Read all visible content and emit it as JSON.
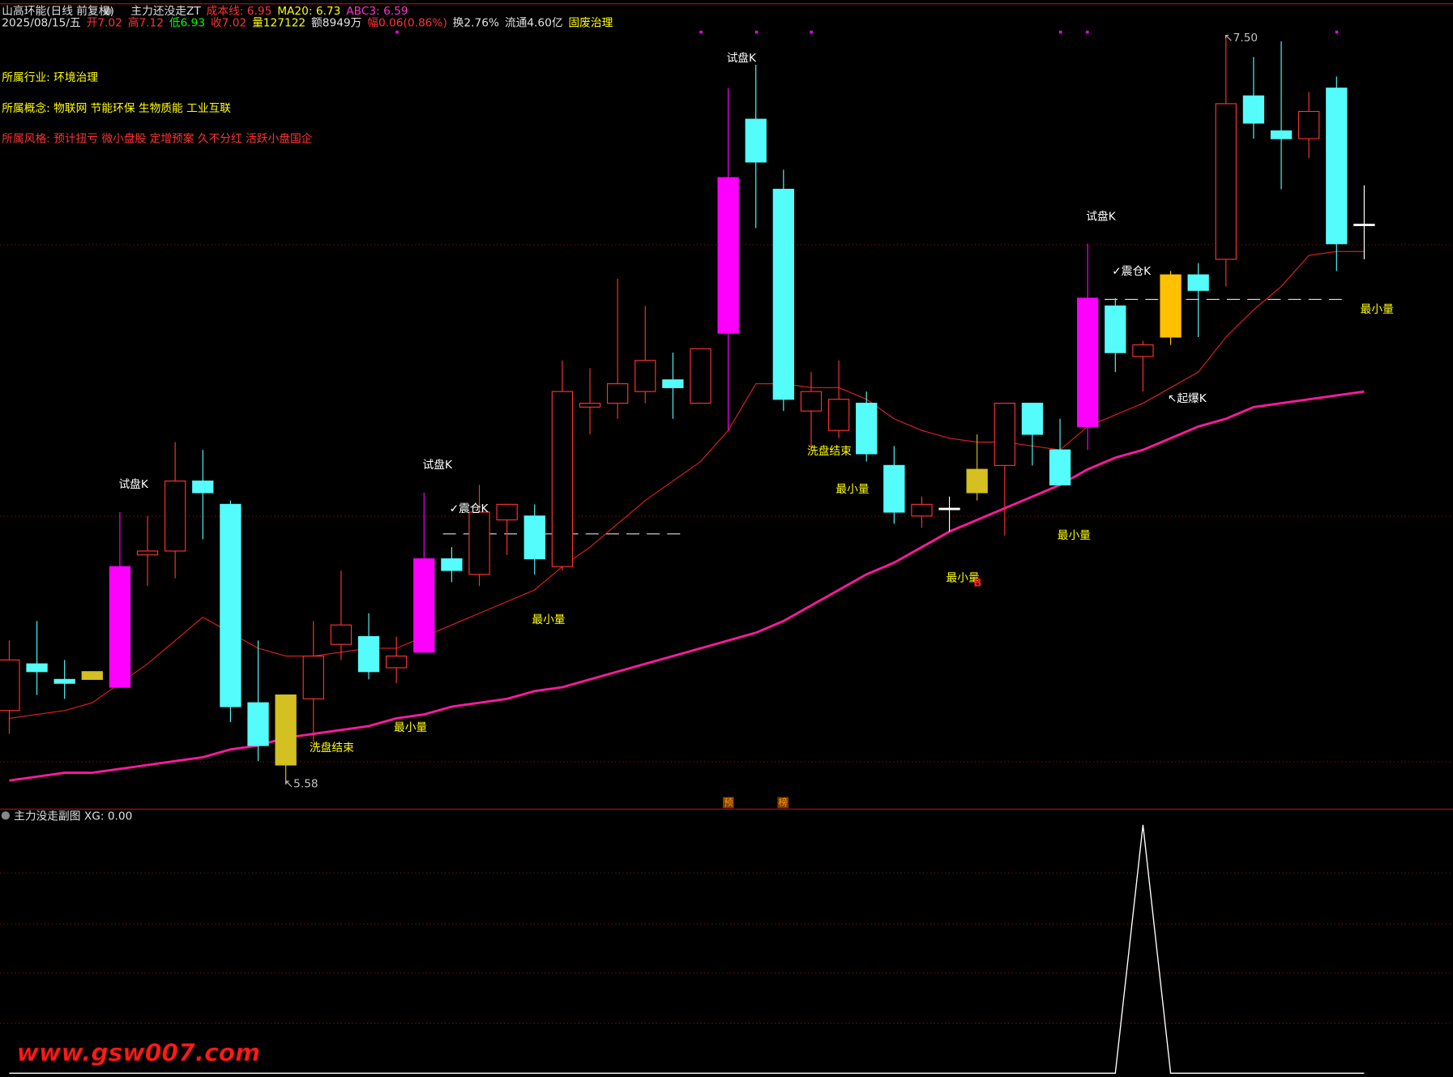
{
  "header": {
    "line1": [
      {
        "text": "山高环能(日线 前复权)",
        "color": "#e0e0e0"
      },
      {
        "text": "主力还没走ZT",
        "color": "#e0e0e0"
      },
      {
        "text": "成本线: 6.95",
        "color": "#ff3232"
      },
      {
        "text": "MA20: 6.73",
        "color": "#ffff00"
      },
      {
        "text": "ABC3: 6.59",
        "color": "#ff33cc"
      }
    ],
    "line2": [
      {
        "text": "2025/08/15/五",
        "color": "#e0e0e0"
      },
      {
        "text": "开7.02",
        "color": "#ff3232"
      },
      {
        "text": "高7.12",
        "color": "#ff3232"
      },
      {
        "text": "低6.93",
        "color": "#00ff00"
      },
      {
        "text": "收7.02",
        "color": "#ff3232"
      },
      {
        "text": "量127122",
        "color": "#ffff00"
      },
      {
        "text": "额8949万",
        "color": "#e0e0e0"
      },
      {
        "text": "幅0.06(0.86%)",
        "color": "#ff3232"
      },
      {
        "text": "换2.76%",
        "color": "#e0e0e0"
      },
      {
        "text": "流通4.60亿",
        "color": "#e0e0e0"
      },
      {
        "text": "固废治理",
        "color": "#ffff00"
      }
    ]
  },
  "info": [
    {
      "text": "所属行业: 环境治理",
      "color": "#ffff00"
    },
    {
      "text": "所属概念: 物联网 节能环保 生物质能 工业互联",
      "color": "#ffff00"
    },
    {
      "text": "所属风格: 预计扭亏 微小盘股 定增预案 久不分红 活跃小盘国企",
      "color": "#ff3232"
    }
  ],
  "chart_data": [
    {
      "type": "candlestick",
      "ylim": [
        5.55,
        7.52
      ],
      "up_color": "#ff3232",
      "open": [
        5.77,
        5.89,
        5.85,
        5.85,
        5.83,
        6.17,
        6.18,
        6.36,
        6.3,
        5.79,
        5.63,
        5.8,
        5.94,
        5.96,
        5.88,
        5.92,
        6.16,
        6.12,
        6.26,
        6.27,
        6.14,
        6.55,
        6.56,
        6.59,
        6.62,
        6.56,
        6.74,
        7.29,
        7.11,
        6.54,
        6.49,
        6.56,
        6.4,
        6.27,
        6.29,
        6.33,
        6.4,
        6.56,
        6.44,
        6.5,
        6.81,
        6.68,
        6.73,
        6.89,
        6.93,
        7.35,
        7.26,
        7.24,
        7.37,
        7.02
      ],
      "high": [
        5.95,
        6.0,
        5.9,
        5.87,
        6.28,
        6.27,
        6.46,
        6.44,
        6.31,
        5.95,
        5.81,
        6.0,
        6.13,
        6.02,
        5.96,
        6.33,
        6.19,
        6.35,
        6.3,
        6.3,
        6.67,
        6.65,
        6.88,
        6.81,
        6.69,
        6.7,
        7.37,
        7.43,
        7.16,
        6.64,
        6.67,
        6.59,
        6.45,
        6.32,
        6.32,
        6.48,
        6.56,
        6.56,
        6.52,
        6.97,
        6.83,
        6.72,
        6.9,
        6.92,
        7.5,
        7.45,
        7.49,
        7.36,
        7.4,
        7.12
      ],
      "low": [
        5.71,
        5.81,
        5.8,
        5.85,
        5.83,
        6.09,
        6.11,
        6.21,
        5.74,
        5.64,
        5.58,
        5.69,
        5.9,
        5.85,
        5.84,
        5.92,
        6.1,
        6.09,
        6.17,
        6.12,
        6.13,
        6.48,
        6.52,
        6.56,
        6.52,
        6.56,
        6.49,
        7.01,
        6.54,
        6.44,
        6.47,
        6.41,
        6.25,
        6.24,
        6.23,
        6.31,
        6.22,
        6.4,
        6.35,
        6.44,
        6.64,
        6.59,
        6.71,
        6.73,
        6.86,
        7.24,
        7.11,
        7.19,
        6.9,
        6.93
      ],
      "close": [
        5.9,
        5.87,
        5.84,
        5.87,
        6.14,
        6.18,
        6.36,
        6.33,
        5.78,
        5.68,
        5.81,
        5.91,
        5.99,
        5.87,
        5.91,
        6.16,
        6.13,
        6.28,
        6.3,
        6.16,
        6.59,
        6.56,
        6.61,
        6.67,
        6.6,
        6.7,
        7.14,
        7.18,
        6.57,
        6.59,
        6.57,
        6.43,
        6.28,
        6.3,
        6.29,
        6.39,
        6.56,
        6.48,
        6.35,
        6.83,
        6.69,
        6.71,
        6.89,
        6.85,
        7.33,
        7.28,
        7.24,
        7.31,
        6.97,
        7.02
      ],
      "colors": [
        "#ff3232",
        "#54fcfc",
        "#54fcfc",
        "#d4c020",
        "#ff00ff",
        "#ff3232",
        "#ff3232",
        "#54fcfc",
        "#54fcfc",
        "#54fcfc",
        "#d4c020",
        "#ff3232",
        "#ff3232",
        "#54fcfc",
        "#ff3232",
        "#ff00ff",
        "#54fcfc",
        "#ff3232",
        "#ff3232",
        "#54fcfc",
        "#ff3232",
        "#ff3232",
        "#ff3232",
        "#ff3232",
        "#54fcfc",
        "#ff3232",
        "#ff00ff",
        "#54fcfc",
        "#54fcfc",
        "#ff3232",
        "#ff3232",
        "#54fcfc",
        "#54fcfc",
        "#ff3232",
        "#ffffff",
        "#d4c020",
        "#ff3232",
        "#54fcfc",
        "#54fcfc",
        "#ff00ff",
        "#54fcfc",
        "#ff3232",
        "#ffc000",
        "#54fcfc",
        "#ff3232",
        "#54fcfc",
        "#54fcfc",
        "#ff3232",
        "#54fcfc",
        "#ffffff"
      ],
      "series": [
        {
          "color": "#e02020",
          "width": 1,
          "values": [
            5.75,
            5.76,
            5.77,
            5.79,
            5.84,
            5.89,
            5.95,
            6.01,
            5.97,
            5.93,
            5.91,
            5.91,
            5.92,
            5.93,
            5.93,
            5.96,
            5.99,
            6.02,
            6.05,
            6.08,
            6.14,
            6.19,
            6.25,
            6.31,
            6.36,
            6.41,
            6.49,
            6.61,
            6.61,
            6.6,
            6.6,
            6.57,
            6.52,
            6.49,
            6.47,
            6.46,
            6.46,
            6.45,
            6.44,
            6.5,
            6.53,
            6.56,
            6.6,
            6.64,
            6.73,
            6.8,
            6.86,
            6.94,
            6.95,
            6.95
          ]
        },
        {
          "color": "#ff1a9e",
          "width": 2.5,
          "values": [
            5.59,
            5.6,
            5.61,
            5.61,
            5.62,
            5.63,
            5.64,
            5.65,
            5.67,
            5.68,
            5.7,
            5.71,
            5.72,
            5.73,
            5.75,
            5.76,
            5.78,
            5.79,
            5.8,
            5.82,
            5.83,
            5.85,
            5.87,
            5.89,
            5.91,
            5.93,
            5.95,
            5.97,
            6.0,
            6.04,
            6.08,
            6.12,
            6.15,
            6.19,
            6.23,
            6.26,
            6.29,
            6.32,
            6.35,
            6.39,
            6.42,
            6.44,
            6.47,
            6.5,
            6.52,
            6.55,
            6.56,
            6.57,
            6.58,
            6.59
          ]
        }
      ],
      "annotations": [
        {
          "text": "试盘K",
          "color": "#ffffff"
        },
        {
          "text": "试盘K",
          "color": "#ffffff"
        },
        {
          "text": "试盘K",
          "color": "#ffffff"
        },
        {
          "text": "试盘K",
          "color": "#ffffff"
        },
        {
          "text": "洗盘结束",
          "color": "#ffff00"
        },
        {
          "text": "洗盘结束",
          "color": "#ffff00"
        },
        {
          "text": "最小量",
          "color": "#ffff00"
        },
        {
          "text": "最小量",
          "color": "#ffff00"
        },
        {
          "text": "最小量",
          "color": "#ffff00"
        },
        {
          "text": "最小量",
          "color": "#ffff00"
        },
        {
          "text": "最小量",
          "color": "#ffff00"
        },
        {
          "text": "最小量",
          "color": "#ffff00"
        },
        {
          "text": "✓震仓K",
          "color": "#ffffff"
        },
        {
          "text": "✓震仓K",
          "color": "#ffffff"
        },
        {
          "text": "↖起爆K",
          "color": "#ffffff"
        },
        {
          "text": "B",
          "color": "#ff2020"
        },
        {
          "text": "↖7.50",
          "color": "#c0c0c0"
        },
        {
          "text": "↖5.58",
          "color": "#c0c0c0"
        },
        {
          "text": "预",
          "color": "#ff9900"
        },
        {
          "text": "榜",
          "color": "#ff9900"
        }
      ]
    },
    {
      "type": "line",
      "title": "主力没走副图 XG: 0.00",
      "ylim": [
        0,
        1
      ],
      "color": "#ffffff",
      "values": [
        0,
        0,
        0,
        0,
        0,
        0,
        0,
        0,
        0,
        0,
        0,
        0,
        0,
        0,
        0,
        0,
        0,
        0,
        0,
        0,
        0,
        0,
        0,
        0,
        0,
        0,
        0,
        0,
        0,
        0,
        0,
        0,
        0,
        0,
        0,
        0,
        0,
        0,
        0,
        0,
        0,
        1,
        0,
        0,
        0,
        0,
        0,
        0,
        0,
        0
      ]
    }
  ],
  "watermark": "www.gsw007.com"
}
